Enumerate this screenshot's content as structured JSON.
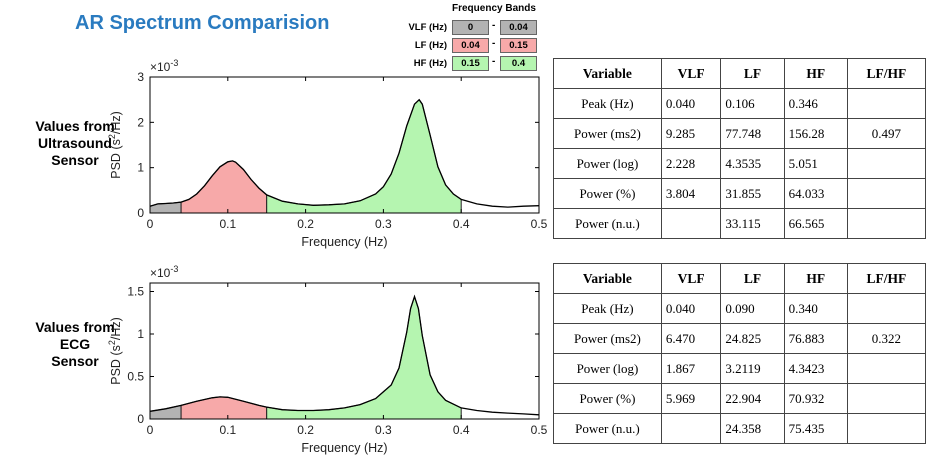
{
  "title": "AR Spectrum Comparision",
  "frequency_bands": {
    "title": "Frequency Bands",
    "bands": [
      {
        "label": "VLF (Hz)",
        "low": "0",
        "high": "0.04",
        "color": "#b3b3b3"
      },
      {
        "label": "LF (Hz)",
        "low": "0.04",
        "high": "0.15",
        "color": "#f7a9a9"
      },
      {
        "label": "HF (Hz)",
        "low": "0.15",
        "high": "0.4",
        "color": "#b5f5b0"
      }
    ],
    "dash": "-"
  },
  "sections": [
    {
      "side_label": [
        "Values from",
        "Ultrasound",
        "Sensor"
      ],
      "table": {
        "headers": [
          "Variable",
          "VLF",
          "LF",
          "HF",
          "LF/HF"
        ],
        "rows": [
          [
            "Peak (Hz)",
            "0.040",
            "0.106",
            "0.346",
            ""
          ],
          [
            "Power (ms2)",
            "9.285",
            "77.748",
            "156.28",
            "0.497"
          ],
          [
            "Power (log)",
            "2.228",
            "4.3535",
            "5.051",
            ""
          ],
          [
            "Power (%)",
            "3.804",
            "31.855",
            "64.033",
            ""
          ],
          [
            "Power (n.u.)",
            "",
            "33.115",
            "66.565",
            ""
          ]
        ]
      }
    },
    {
      "side_label": [
        "Values from",
        "ECG",
        "Sensor"
      ],
      "table": {
        "headers": [
          "Variable",
          "VLF",
          "LF",
          "HF",
          "LF/HF"
        ],
        "rows": [
          [
            "Peak (Hz)",
            "0.040",
            "0.090",
            "0.340",
            ""
          ],
          [
            "Power (ms2)",
            "6.470",
            "24.825",
            "76.883",
            "0.322"
          ],
          [
            "Power (log)",
            "1.867",
            "3.2119",
            "4.3423",
            ""
          ],
          [
            "Power (%)",
            "5.969",
            "22.904",
            "70.932",
            ""
          ],
          [
            "Power (n.u.)",
            "",
            "24.358",
            "75.435",
            ""
          ]
        ]
      }
    }
  ],
  "chart_data": [
    {
      "type": "area",
      "xlabel": "Frequency (Hz)",
      "ylabel": "PSD (s²/Hz)",
      "ylabel_main": "PSD (s",
      "ylabel_sup": "2",
      "ylabel_tail": "/Hz)",
      "exponent": "×10",
      "exponent_sup": "-3",
      "xlim": [
        0,
        0.5
      ],
      "ylim": [
        0,
        3
      ],
      "xticks": [
        0,
        0.1,
        0.2,
        0.3,
        0.4,
        0.5
      ],
      "xtick_labels": [
        "0",
        "0.1",
        "0.2",
        "0.3",
        "0.4",
        "0.5"
      ],
      "yticks": [
        0,
        1,
        2,
        3
      ],
      "ytick_labels": [
        "0",
        "1",
        "2",
        "3"
      ],
      "bands": [
        [
          0,
          0.04
        ],
        [
          0.04,
          0.15
        ],
        [
          0.15,
          0.4
        ]
      ],
      "x": [
        0,
        0.01,
        0.02,
        0.03,
        0.04,
        0.05,
        0.06,
        0.07,
        0.08,
        0.09,
        0.1,
        0.106,
        0.11,
        0.12,
        0.13,
        0.14,
        0.15,
        0.17,
        0.19,
        0.21,
        0.23,
        0.25,
        0.27,
        0.29,
        0.3,
        0.31,
        0.32,
        0.33,
        0.34,
        0.346,
        0.35,
        0.36,
        0.37,
        0.38,
        0.39,
        0.4,
        0.42,
        0.44,
        0.46,
        0.48,
        0.5
      ],
      "y": [
        0.15,
        0.2,
        0.21,
        0.22,
        0.24,
        0.3,
        0.42,
        0.6,
        0.82,
        1.02,
        1.13,
        1.15,
        1.12,
        0.96,
        0.74,
        0.55,
        0.4,
        0.26,
        0.2,
        0.17,
        0.18,
        0.2,
        0.27,
        0.42,
        0.58,
        0.86,
        1.32,
        1.92,
        2.4,
        2.5,
        2.4,
        1.72,
        1.02,
        0.62,
        0.42,
        0.3,
        0.2,
        0.15,
        0.13,
        0.15,
        0.16
      ]
    },
    {
      "type": "area",
      "xlabel": "Frequency (Hz)",
      "ylabel": "PSD (s²/Hz)",
      "ylabel_main": "PSD (s",
      "ylabel_sup": "2",
      "ylabel_tail": "/Hz)",
      "exponent": "×10",
      "exponent_sup": "-3",
      "xlim": [
        0,
        0.5
      ],
      "ylim": [
        0,
        1.6
      ],
      "xticks": [
        0,
        0.1,
        0.2,
        0.3,
        0.4,
        0.5
      ],
      "xtick_labels": [
        "0",
        "0.1",
        "0.2",
        "0.3",
        "0.4",
        "0.5"
      ],
      "yticks": [
        0,
        0.5,
        1,
        1.5
      ],
      "ytick_labels": [
        "0",
        "0.5",
        "1",
        "1.5"
      ],
      "bands": [
        [
          0,
          0.04
        ],
        [
          0.04,
          0.15
        ],
        [
          0.15,
          0.4
        ]
      ],
      "x": [
        0,
        0.02,
        0.04,
        0.06,
        0.08,
        0.09,
        0.1,
        0.12,
        0.14,
        0.15,
        0.17,
        0.19,
        0.21,
        0.23,
        0.25,
        0.27,
        0.29,
        0.31,
        0.32,
        0.33,
        0.335,
        0.34,
        0.345,
        0.35,
        0.36,
        0.37,
        0.38,
        0.4,
        0.42,
        0.44,
        0.46,
        0.48,
        0.5
      ],
      "y": [
        0.09,
        0.12,
        0.16,
        0.21,
        0.25,
        0.26,
        0.255,
        0.21,
        0.16,
        0.14,
        0.11,
        0.1,
        0.1,
        0.11,
        0.13,
        0.17,
        0.24,
        0.4,
        0.6,
        1.02,
        1.3,
        1.44,
        1.3,
        0.98,
        0.52,
        0.32,
        0.22,
        0.13,
        0.1,
        0.08,
        0.07,
        0.06,
        0.05
      ]
    }
  ]
}
